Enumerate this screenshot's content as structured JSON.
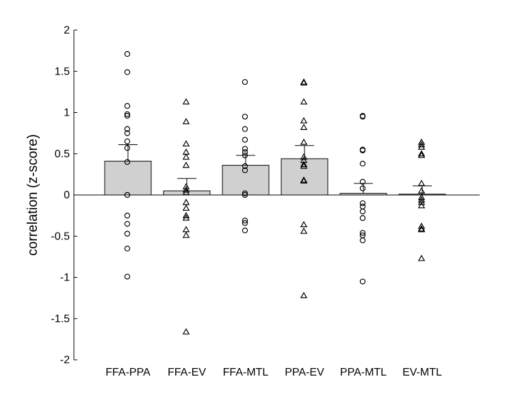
{
  "chart_data": {
    "type": "bar",
    "title": "",
    "xlabel": "",
    "ylabel": "correlation (z-score)",
    "ylim": [
      -2,
      2
    ],
    "yticks": [
      -2,
      -1.5,
      -1,
      -0.5,
      0,
      0.5,
      1,
      1.5,
      2
    ],
    "ytick_labels": [
      "-2",
      "-1.5",
      "-1",
      "-0.5",
      "0",
      "0.5",
      "1",
      "1.5",
      "2"
    ],
    "categories": [
      "FFA-PPA",
      "FFA-EV",
      "FFA-MTL",
      "PPA-EV",
      "PPA-MTL",
      "EV-MTL"
    ],
    "values": [
      0.41,
      0.05,
      0.36,
      0.44,
      0.02,
      0.01
    ],
    "errors": [
      0.2,
      0.15,
      0.12,
      0.16,
      0.12,
      0.1
    ],
    "grid": false,
    "bar_color": "#d0d0d0",
    "marker_color": "#000000",
    "points": [
      {
        "marker": "circle",
        "values": [
          1.71,
          1.49,
          1.08,
          0.98,
          0.96,
          0.8,
          0.75,
          0.65,
          0.57,
          0.4,
          0.0,
          -0.25,
          -0.35,
          -0.47,
          -0.65,
          -0.99
        ]
      },
      {
        "marker": "triangle",
        "values": [
          1.13,
          0.89,
          0.62,
          0.52,
          0.46,
          0.36,
          0.1,
          0.06,
          0.03,
          -0.09,
          -0.16,
          -0.25,
          -0.28,
          -0.42,
          -0.49,
          -1.66
        ]
      },
      {
        "marker": "circle",
        "values": [
          1.37,
          0.95,
          0.8,
          0.67,
          0.56,
          0.52,
          0.48,
          0.35,
          0.3,
          0.02,
          0.0,
          -0.31,
          -0.34,
          -0.43
        ]
      },
      {
        "marker": "triangle",
        "values": [
          1.37,
          1.36,
          1.13,
          0.9,
          0.82,
          0.64,
          0.46,
          0.42,
          0.37,
          0.35,
          0.18,
          0.17,
          -0.36,
          -0.44,
          -1.22
        ]
      },
      {
        "marker": "circle",
        "values": [
          0.96,
          0.95,
          0.55,
          0.54,
          0.38,
          0.16,
          0.08,
          -0.1,
          -0.14,
          -0.2,
          -0.28,
          -0.46,
          -0.49,
          -0.55,
          -1.05
        ]
      },
      {
        "marker": "triangle",
        "values": [
          0.64,
          0.61,
          0.58,
          0.5,
          0.48,
          0.14,
          0.05,
          -0.03,
          -0.06,
          -0.09,
          -0.13,
          -0.38,
          -0.41,
          -0.42,
          -0.77
        ]
      }
    ]
  }
}
